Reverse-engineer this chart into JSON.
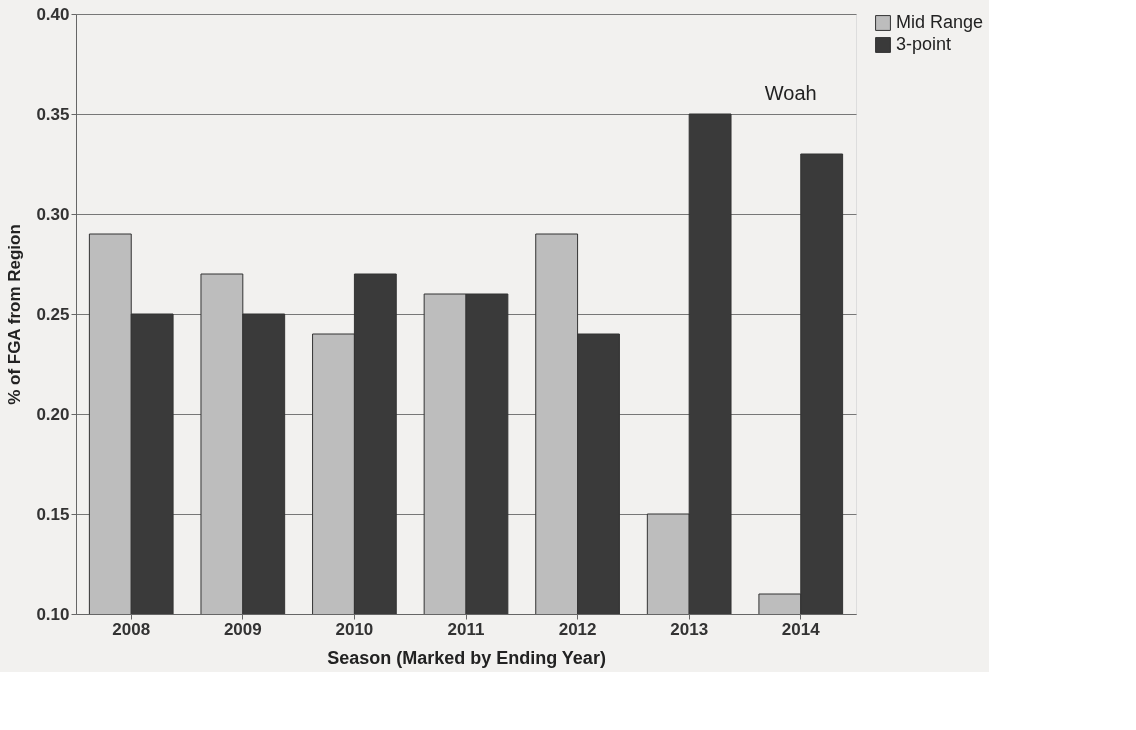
{
  "chart_data": {
    "type": "bar",
    "xlabel": "Season (Marked by Ending Year)",
    "ylabel": "% of FGA from Region",
    "categories": [
      "2008",
      "2009",
      "2010",
      "2011",
      "2012",
      "2013",
      "2014"
    ],
    "series": [
      {
        "name": "Mid Range",
        "color": "#bdbdbd",
        "values": [
          0.29,
          0.27,
          0.24,
          0.26,
          0.29,
          0.15,
          0.11
        ]
      },
      {
        "name": "3-point",
        "color": "#3a3a3a",
        "values": [
          0.25,
          0.25,
          0.27,
          0.26,
          0.24,
          0.35,
          0.33
        ]
      }
    ],
    "ylim": [
      0.1,
      0.4
    ],
    "yticks": [
      {
        "value": 0.1,
        "label": "0.10"
      },
      {
        "value": 0.15,
        "label": "0.15"
      },
      {
        "value": 0.2,
        "label": "0.20"
      },
      {
        "value": 0.25,
        "label": "0.25"
      },
      {
        "value": 0.3,
        "label": "0.30"
      },
      {
        "value": 0.35,
        "label": "0.35"
      },
      {
        "value": 0.4,
        "label": "0.40"
      }
    ],
    "grid": "y",
    "legend": "right",
    "annotations": [
      {
        "text": "Woah",
        "x": "2014",
        "y": 0.33
      }
    ]
  }
}
